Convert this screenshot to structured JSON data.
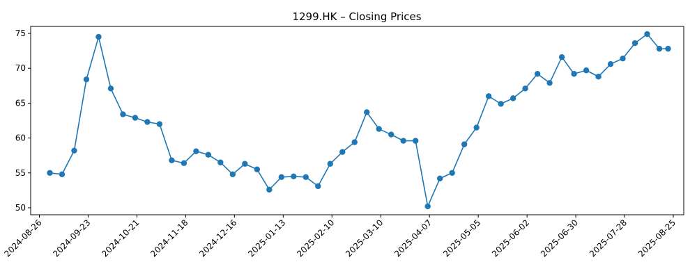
{
  "chart_data": {
    "type": "line",
    "title": "1299.HK – Closing Prices",
    "xlabel": "",
    "ylabel": "",
    "grid": false,
    "legend": "none",
    "color": "#1f77b4",
    "ylim": [
      49,
      76
    ],
    "xlim": [
      "2024-08-21",
      "2025-08-31"
    ],
    "y_ticks": [
      50,
      55,
      60,
      65,
      70,
      75
    ],
    "x_ticks": [
      "2024-08-26",
      "2024-09-23",
      "2024-10-21",
      "2024-11-18",
      "2024-12-16",
      "2025-01-13",
      "2025-02-10",
      "2025-03-10",
      "2025-04-07",
      "2025-05-05",
      "2025-06-02",
      "2025-06-30",
      "2025-07-28",
      "2025-08-25"
    ],
    "series": [
      {
        "x": [
          "2024-09-01",
          "2024-09-08",
          "2024-09-15",
          "2024-09-22",
          "2024-09-29",
          "2024-10-06",
          "2024-10-13",
          "2024-10-20",
          "2024-10-27",
          "2024-11-03",
          "2024-11-10",
          "2024-11-17",
          "2024-11-24",
          "2024-12-01",
          "2024-12-08",
          "2024-12-15",
          "2024-12-22",
          "2024-12-29",
          "2025-01-05",
          "2025-01-12",
          "2025-01-19",
          "2025-01-26",
          "2025-02-02",
          "2025-02-09",
          "2025-02-16",
          "2025-02-23",
          "2025-03-02",
          "2025-03-09",
          "2025-03-16",
          "2025-03-23",
          "2025-03-30",
          "2025-04-06",
          "2025-04-13",
          "2025-04-20",
          "2025-04-27",
          "2025-05-04",
          "2025-05-11",
          "2025-05-18",
          "2025-05-25",
          "2025-06-01",
          "2025-06-08",
          "2025-06-15",
          "2025-06-22",
          "2025-06-29",
          "2025-07-06",
          "2025-07-13",
          "2025-07-20",
          "2025-07-27",
          "2025-08-03",
          "2025-08-10",
          "2025-08-17",
          "2025-08-22"
        ],
        "values": [
          55.0,
          54.8,
          58.2,
          68.4,
          74.5,
          67.1,
          63.4,
          62.9,
          62.3,
          62.0,
          56.8,
          56.4,
          58.1,
          57.6,
          56.5,
          54.8,
          56.3,
          55.5,
          52.6,
          54.4,
          54.5,
          54.4,
          53.1,
          56.3,
          58.0,
          59.4,
          63.7,
          61.3,
          60.5,
          59.6,
          59.6,
          50.2,
          54.2,
          55.0,
          59.1,
          61.5,
          66.0,
          64.9,
          65.7,
          67.1,
          69.2,
          67.9,
          71.6,
          69.2,
          69.7,
          68.8,
          70.6,
          71.4,
          73.6,
          74.9,
          72.8,
          72.8
        ]
      }
    ]
  }
}
